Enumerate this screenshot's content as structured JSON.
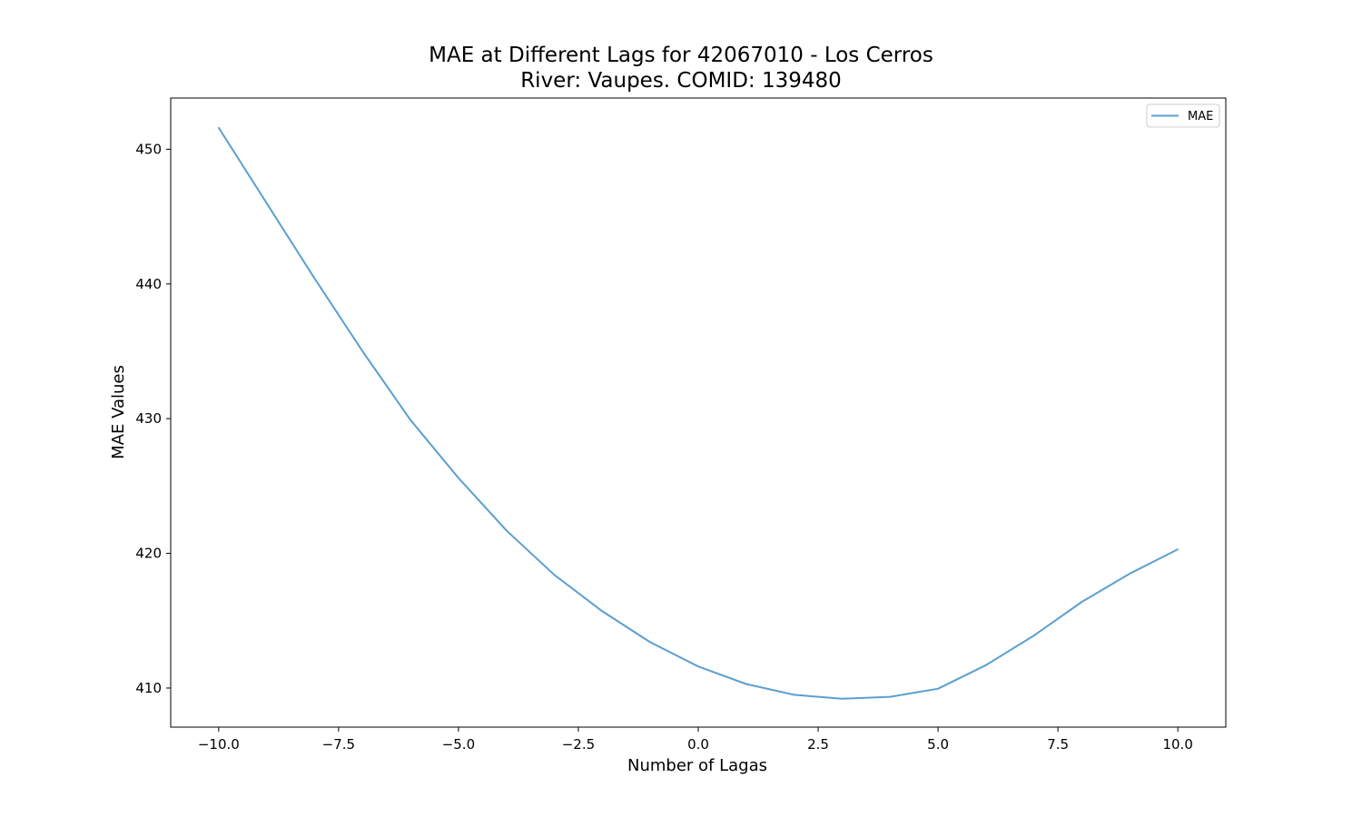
{
  "chart_data": {
    "type": "line",
    "title_lines": [
      "MAE at Different Lags for 42067010 - Los Cerros",
      "River: Vaupes. COMID: 139480"
    ],
    "xlabel": "Number of Lagas",
    "ylabel": "MAE Values",
    "xlim": [
      -11,
      11
    ],
    "ylim": [
      407.1,
      453.8
    ],
    "x_ticks": [
      -10.0,
      -7.5,
      -5.0,
      -2.5,
      0.0,
      2.5,
      5.0,
      7.5,
      10.0
    ],
    "x_tick_labels": [
      "−10.0",
      "−7.5",
      "−5.0",
      "−2.5",
      "0.0",
      "2.5",
      "5.0",
      "7.5",
      "10.0"
    ],
    "y_ticks": [
      410,
      420,
      430,
      440,
      450
    ],
    "y_tick_labels": [
      "410",
      "420",
      "430",
      "440",
      "450"
    ],
    "grid": false,
    "legend_position": "upper right",
    "series": [
      {
        "name": "MAE",
        "color": "#5b9fd0",
        "x": [
          -10,
          -9,
          -8,
          -7,
          -6,
          -5,
          -4,
          -3,
          -2,
          -1,
          0,
          1,
          2,
          3,
          4,
          5,
          6,
          7,
          8,
          9,
          10
        ],
        "y": [
          451.6,
          446.0,
          440.4,
          435.0,
          429.9,
          425.6,
          421.7,
          418.4,
          415.7,
          413.4,
          411.6,
          410.3,
          409.5,
          409.2,
          409.35,
          409.95,
          411.7,
          413.9,
          416.4,
          418.5,
          420.3
        ]
      }
    ]
  }
}
